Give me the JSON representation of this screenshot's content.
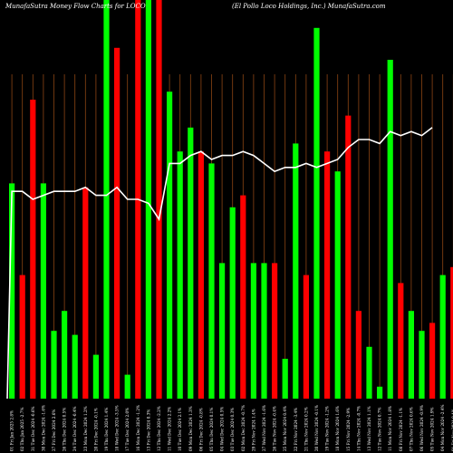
{
  "header": {
    "left": "MunafaSutra  Money  Flow  Charts  for  LOCO",
    "right": "(El  Pollo  Loco  Holdings,  Inc.)  MunafaSutra.com"
  },
  "colors": {
    "background": "#000000",
    "grid": "#8B4513",
    "up": "#00FF00",
    "down": "#FF0000",
    "line": "#FFFFFF"
  },
  "chart_data": {
    "type": "bar",
    "categories": [
      "01 Fri Jan 2025 2.8%",
      "02 Thu Jan 2025 -2.7%",
      "31 Tue Dec 2024 -0.6%",
      "30 Mon Dec 2024 -1.6%",
      "27 Fri Dec 2024 2.6%",
      "26 Thu Dec 2024 0.5%",
      "24 Tue Dec 2024 -0.4%",
      "23 Mon Dec 2024 1.2%",
      "20 Fri Dec 2024 -0.1%",
      "19 Thu Dec 2024 1.4%",
      "18 Wed Dec 2024 -3.5%",
      "17 Tue Dec 2024 2.0%",
      "16 Mon Dec 2024 -1.2%",
      "13 Fri Dec 2024 0.3%",
      "12 Thu Dec 2024 -2.2%",
      "11 Wed Dec 2024 2.2%",
      "10 Tue Dec 2024 2.1%",
      "09 Mon Dec 2024 1.3%",
      "06 Fri Dec 2024 -0.8%",
      "05 Thu Dec 2024 0.1%",
      "04 Wed Dec 2024 0.5%",
      "03 Tue Dec 2024 0.3%",
      "02 Mon Dec 2024 -0.7%",
      "29 Fri Nov 2024 1.4%",
      "27 Wed Nov 2024 -1.6%",
      "26 Tue Nov 2024 -0.4%",
      "25 Mon Nov 2024 0.4%",
      "22 Fri Nov 2024 -3.4%",
      "21 Thu Nov 2024 0.2%",
      "20 Wed Nov 2024 -0.1%",
      "19 Tue Nov 2024 -1.2%",
      "18 Mon Nov 2024 1.6%",
      "15 Fri Nov 2024 -2.9%",
      "14 Thu Nov 2024 -0.7%",
      "13 Wed Nov 2024 1.1%",
      "12 Tue Nov 2024 0.7%",
      "11 Mon Nov 2024 1.8%",
      "08 Fri Nov 2024 -1.1%",
      "07 Thu Nov 2024 0.6%",
      "06 Wed Nov 2024 -0.9%",
      "05 Tue Nov 2024 1.9%",
      "04 Mon Nov 2024 -2.4%",
      "01 Fri Nov 2024 0.4%",
      "31 Thu Oct 2024 -1.4%",
      "30 Wed Oct 2024 1.0%"
    ],
    "x_order": "right-to-left (most recent date at the left)",
    "bar_colors": [
      "g",
      "r",
      "r",
      "g",
      "g",
      "g",
      "g",
      "r",
      "g",
      "g",
      "r",
      "g",
      "r",
      "g",
      "r",
      "g",
      "g",
      "g",
      "r",
      "g",
      "g",
      "g",
      "r",
      "g",
      "g",
      "r",
      "g",
      "g",
      "r",
      "g",
      "r",
      "g",
      "r",
      "r",
      "g",
      "g",
      "g",
      "r",
      "g",
      "g",
      "r",
      "g",
      "r",
      "r",
      "g"
    ],
    "values": [
      54,
      31,
      75,
      54,
      17,
      22,
      16,
      53,
      11,
      100,
      88,
      6,
      100,
      100,
      100,
      77,
      62,
      68,
      62,
      59,
      34,
      48,
      51,
      34,
      34,
      34,
      10,
      64,
      31,
      93,
      62,
      57,
      71,
      22,
      13,
      3,
      85,
      29,
      22,
      17,
      19,
      31,
      33,
      0,
      0
    ],
    "line_values": [
      52,
      52,
      50,
      51,
      52,
      52,
      52,
      53,
      51,
      51,
      53,
      50,
      50,
      49,
      45,
      59,
      59,
      61,
      62,
      60,
      61,
      61,
      62,
      61,
      59,
      57,
      58,
      58,
      59,
      58,
      59,
      60,
      63,
      65,
      65,
      64,
      67,
      66,
      67,
      66,
      68,
      0,
      0,
      0,
      0
    ],
    "ylim": [
      0,
      100
    ],
    "grid": "vertical lines at each category",
    "xlabel": "",
    "ylabel": ""
  }
}
